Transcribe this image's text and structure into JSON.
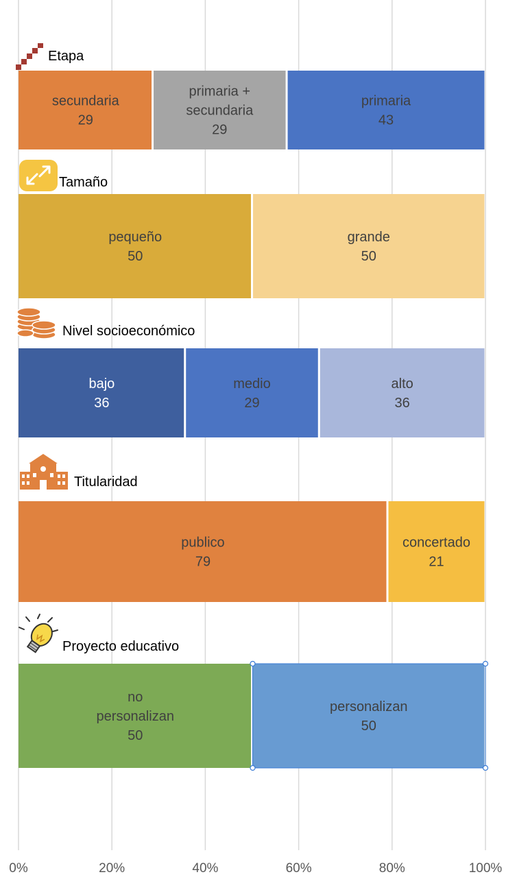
{
  "chart_data": {
    "type": "bar",
    "orientation": "horizontal",
    "stacked": "100%",
    "title": "",
    "xlim": [
      0,
      100
    ],
    "x_ticks": [
      "0%",
      "20%",
      "40%",
      "60%",
      "80%",
      "100%"
    ],
    "grid": true,
    "groups": [
      {
        "label": "Etapa",
        "icon": "stairs-icon",
        "segments": [
          {
            "name": "secundaria",
            "value": 29,
            "color": "#E0823F",
            "text_color": "#404040"
          },
          {
            "name": "primaria + secundaria",
            "value": 29,
            "color": "#A5A5A5",
            "text_color": "#404040"
          },
          {
            "name": "primaria",
            "value": 43,
            "color": "#4A74C4",
            "text_color": "#404040"
          }
        ]
      },
      {
        "label": "Tamaño",
        "icon": "expand-arrows-icon",
        "segments": [
          {
            "name": "pequeño",
            "value": 50,
            "color": "#D9AB3A",
            "text_color": "#404040"
          },
          {
            "name": "grande",
            "value": 50,
            "color": "#F6D390",
            "text_color": "#404040"
          }
        ]
      },
      {
        "label": "Nivel socioeconómico",
        "icon": "coins-icon",
        "segments": [
          {
            "name": "bajo",
            "value": 36,
            "color": "#3E5F9E",
            "text_color": "#ffffff"
          },
          {
            "name": "medio",
            "value": 29,
            "color": "#4B74C3",
            "text_color": "#404040"
          },
          {
            "name": "alto",
            "value": 36,
            "color": "#A9B7DB",
            "text_color": "#404040"
          }
        ]
      },
      {
        "label": "Titularidad",
        "icon": "school-building-icon",
        "segments": [
          {
            "name": "publico",
            "value": 79,
            "color": "#E0823F",
            "text_color": "#404040"
          },
          {
            "name": "concertado",
            "value": 21,
            "color": "#F5BE41",
            "text_color": "#404040"
          }
        ]
      },
      {
        "label": "Proyecto educativo",
        "icon": "lightbulb-icon",
        "segments": [
          {
            "name": "no personalizan",
            "value": 50,
            "color": "#7DAA55",
            "text_color": "#404040"
          },
          {
            "name": "personalizan",
            "value": 50,
            "color": "#689BD2",
            "text_color": "#404040"
          }
        ]
      }
    ]
  }
}
